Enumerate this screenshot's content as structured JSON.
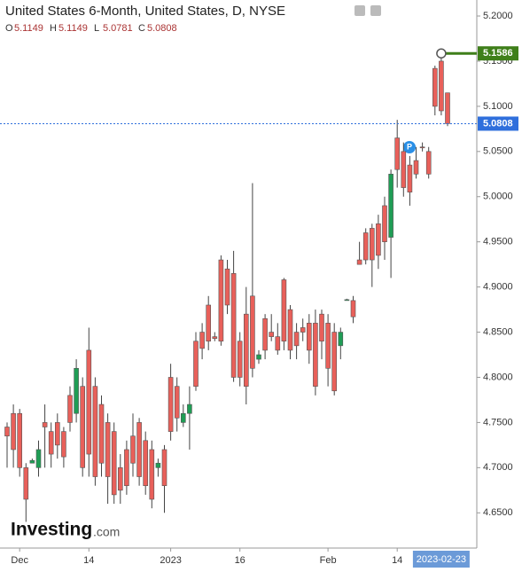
{
  "chart_data": {
    "type": "candlestick",
    "title": "United States 6-Month, United States, D, NYSE",
    "ohlc_labels": [
      "O",
      "H",
      "L",
      "C"
    ],
    "categories": [
      null,
      null,
      "Dec",
      null,
      null,
      null,
      null,
      null,
      null,
      null,
      null,
      null,
      null,
      "14",
      null,
      null,
      null,
      null,
      null,
      null,
      null,
      null,
      null,
      null,
      null,
      null,
      "2023",
      null,
      null,
      null,
      null,
      null,
      null,
      null,
      null,
      null,
      null,
      "16",
      null,
      null,
      null,
      null,
      null,
      null,
      null,
      null,
      null,
      null,
      null,
      null,
      null,
      "Feb",
      null,
      null,
      null,
      null,
      null,
      null,
      null,
      null,
      null,
      null,
      "14",
      null,
      null,
      null,
      null,
      null,
      null,
      "2023-02-23",
      null
    ],
    "open": [
      4.745,
      4.76,
      4.76,
      4.7,
      4.705,
      4.7,
      4.75,
      4.74,
      4.75,
      4.74,
      4.78,
      4.76,
      4.79,
      4.83,
      4.79,
      4.77,
      4.75,
      4.74,
      4.7,
      4.72,
      4.735,
      4.75,
      4.73,
      4.72,
      4.7,
      4.72,
      4.8,
      4.79,
      4.75,
      4.76,
      4.84,
      4.85,
      4.88,
      4.845,
      4.93,
      4.92,
      4.915,
      4.84,
      4.87,
      4.89,
      4.82,
      4.865,
      4.85,
      4.845,
      4.908,
      4.875,
      4.85,
      4.855,
      4.86,
      4.86,
      4.87,
      4.86,
      4.85,
      4.835,
      4.885,
      4.885,
      4.93,
      4.96,
      4.965,
      4.97,
      4.99,
      4.955,
      5.065,
      5.05,
      5.035,
      5.04,
      5.055,
      5.05,
      5.142,
      5.15,
      5.1149
    ],
    "high": [
      4.75,
      4.77,
      4.765,
      4.705,
      4.71,
      4.73,
      4.77,
      4.75,
      4.76,
      4.745,
      4.79,
      4.82,
      4.8,
      4.855,
      4.8,
      4.78,
      4.76,
      4.75,
      4.715,
      4.73,
      4.76,
      4.755,
      4.74,
      4.73,
      4.71,
      4.725,
      4.815,
      4.8,
      4.77,
      4.79,
      4.85,
      4.86,
      4.89,
      4.85,
      4.935,
      4.93,
      4.94,
      4.85,
      4.9,
      5.015,
      4.83,
      4.87,
      4.87,
      4.86,
      4.91,
      4.88,
      4.86,
      4.865,
      4.87,
      4.875,
      4.875,
      4.87,
      4.86,
      4.855,
      4.887,
      4.89,
      4.95,
      4.965,
      4.97,
      4.98,
      5.0,
      5.03,
      5.085,
      5.06,
      5.045,
      5.055,
      5.06,
      5.055,
      5.145,
      5.159,
      5.1149
    ],
    "low": [
      4.7,
      4.7,
      4.69,
      4.64,
      4.705,
      4.69,
      4.7,
      4.7,
      4.71,
      4.7,
      4.74,
      4.75,
      4.69,
      4.69,
      4.68,
      4.69,
      4.66,
      4.66,
      4.66,
      4.67,
      4.69,
      4.68,
      4.67,
      4.655,
      4.69,
      4.65,
      4.73,
      4.74,
      4.745,
      4.72,
      4.785,
      4.82,
      4.83,
      4.84,
      4.835,
      4.87,
      4.795,
      4.79,
      4.77,
      4.8,
      4.815,
      4.82,
      4.84,
      4.825,
      4.83,
      4.82,
      4.82,
      4.84,
      4.815,
      4.78,
      4.82,
      4.79,
      4.78,
      4.82,
      4.885,
      4.86,
      4.925,
      4.925,
      4.9,
      4.92,
      4.93,
      4.91,
      5.01,
      5.0,
      4.99,
      5.02,
      5.05,
      5.02,
      5.09,
      5.09,
      5.0781
    ],
    "close": [
      4.735,
      4.72,
      4.7,
      4.665,
      4.708,
      4.72,
      4.745,
      4.715,
      4.725,
      4.712,
      4.75,
      4.81,
      4.7,
      4.715,
      4.69,
      4.705,
      4.69,
      4.67,
      4.675,
      4.68,
      4.705,
      4.69,
      4.68,
      4.665,
      4.705,
      4.68,
      4.74,
      4.755,
      4.76,
      4.77,
      4.79,
      4.832,
      4.84,
      4.843,
      4.84,
      4.88,
      4.8,
      4.8,
      4.79,
      4.81,
      4.825,
      4.83,
      4.845,
      4.83,
      4.84,
      4.83,
      4.835,
      4.85,
      4.83,
      4.79,
      4.84,
      4.81,
      4.785,
      4.85,
      4.886,
      4.867,
      4.925,
      4.93,
      4.93,
      4.935,
      4.95,
      5.025,
      5.03,
      5.01,
      5.005,
      5.025,
      5.054,
      5.025,
      5.1,
      5.095,
      5.0808
    ],
    "up_color": "#1f9d55",
    "down_color": "#e8605a",
    "ylim": [
      4.611,
      5.2177
    ],
    "yticks": [
      {
        "value": 4.65,
        "label": "4.6500"
      },
      {
        "value": 4.7,
        "label": "4.7000"
      },
      {
        "value": 4.75,
        "label": "4.7500"
      },
      {
        "value": 4.8,
        "label": "4.8000"
      },
      {
        "value": 4.85,
        "label": "4.8500"
      },
      {
        "value": 4.9,
        "label": "4.9000"
      },
      {
        "value": 4.95,
        "label": "4.9500"
      },
      {
        "value": 5.0,
        "label": "5.0000"
      },
      {
        "value": 5.05,
        "label": "5.0500"
      },
      {
        "value": 5.1,
        "label": "5.1000"
      },
      {
        "value": 5.15,
        "label": "5.1500"
      },
      {
        "value": 5.2,
        "label": "5.2000"
      }
    ],
    "level_line": {
      "value": 5.1586,
      "color": "#3f7f1a"
    },
    "last_price_color": "#2f6fdc",
    "marker_label": "P",
    "brand": "Investing",
    "brand_suffix": ".com"
  }
}
